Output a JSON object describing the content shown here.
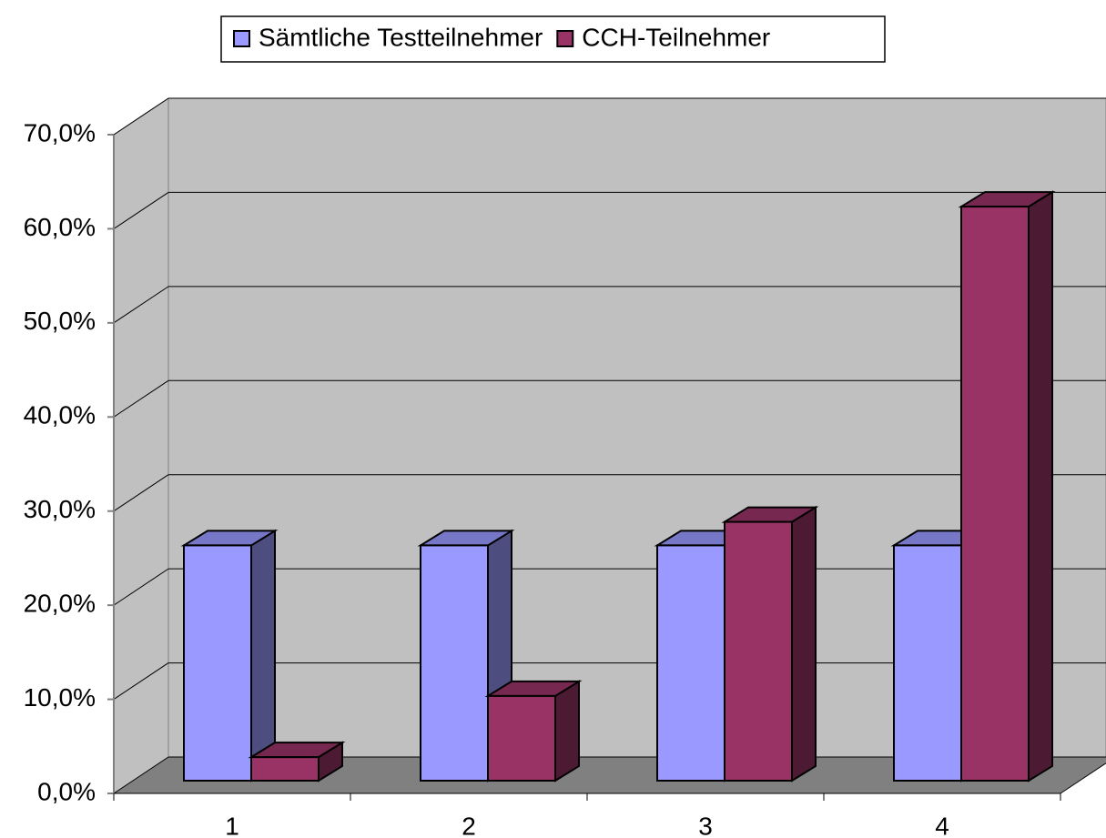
{
  "chart_data": {
    "type": "bar3d",
    "categories": [
      "1",
      "2",
      "3",
      "4"
    ],
    "series": [
      {
        "name": "Sämtliche Testteilnehmer",
        "color": "#9999ff",
        "values": [
          25,
          25,
          25,
          25
        ]
      },
      {
        "name": "CCH-Teilnehmer",
        "color": "#993366",
        "values": [
          2.5,
          9,
          27.5,
          61
        ]
      }
    ],
    "ylim": [
      0,
      70
    ],
    "yticks": [
      {
        "value": 0,
        "label": "0,0%"
      },
      {
        "value": 10,
        "label": "10,0%"
      },
      {
        "value": 20,
        "label": "20,0%"
      },
      {
        "value": 30,
        "label": "30,0%"
      },
      {
        "value": 40,
        "label": "40,0%"
      },
      {
        "value": 50,
        "label": "50,0%"
      },
      {
        "value": 60,
        "label": "60,0%"
      },
      {
        "value": 70,
        "label": "70,0%"
      }
    ],
    "grid": true,
    "legend": "top"
  }
}
